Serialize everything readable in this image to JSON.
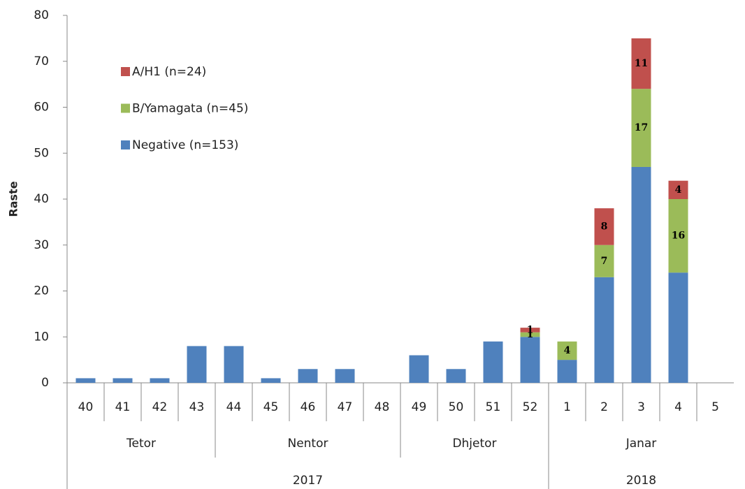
{
  "chart_data": {
    "type": "stacked_bar",
    "y_label": "Raste",
    "categories": [
      "40",
      "41",
      "42",
      "43",
      "44",
      "45",
      "46",
      "47",
      "48",
      "49",
      "50",
      "51",
      "52",
      "1",
      "2",
      "3",
      "4",
      "5"
    ],
    "series": [
      {
        "name": "Negative (n=153)",
        "color": "#4f81bd",
        "data_labels": false,
        "values": [
          1,
          1,
          1,
          8,
          8,
          1,
          3,
          3,
          0,
          6,
          3,
          9,
          10,
          5,
          23,
          47,
          24,
          0
        ]
      },
      {
        "name": "B/Yamagata (n=45)",
        "color": "#9bbb59",
        "data_labels": true,
        "values": [
          0,
          0,
          0,
          0,
          0,
          0,
          0,
          0,
          0,
          0,
          0,
          0,
          1,
          4,
          7,
          17,
          16,
          0
        ]
      },
      {
        "name": "A/H1 (n=24)",
        "color": "#c0504d",
        "data_labels": true,
        "values": [
          0,
          0,
          0,
          0,
          0,
          0,
          0,
          0,
          0,
          0,
          0,
          0,
          1,
          0,
          8,
          11,
          4,
          0
        ]
      }
    ],
    "month_groups": [
      {
        "name": "Tetor",
        "span": 4
      },
      {
        "name": "Nentor",
        "span": 5
      },
      {
        "name": "Dhjetor",
        "span": 4
      },
      {
        "name": "Janar",
        "span": 5
      }
    ],
    "year_groups": [
      {
        "name": "2017",
        "span": 13
      },
      {
        "name": "2018",
        "span": 5
      }
    ],
    "ylim": [
      0,
      80
    ],
    "yticks": [
      0,
      10,
      20,
      30,
      40,
      50,
      60,
      70,
      80
    ],
    "grid": false,
    "legend": "top-left"
  }
}
